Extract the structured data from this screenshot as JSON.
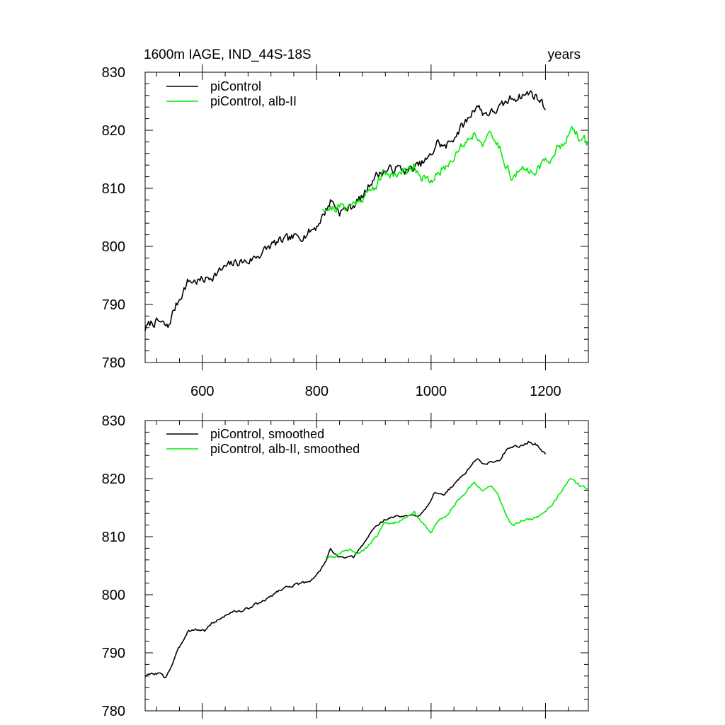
{
  "chart_data": [
    {
      "type": "line",
      "title_left": "1600m IAGE, IND_44S-18S",
      "title_right": "years",
      "xlim": [
        500,
        1275
      ],
      "ylim": [
        780,
        830
      ],
      "x_ticks": [
        600,
        800,
        1000,
        1200
      ],
      "x_tick_labels": [
        "600",
        "800",
        "1000",
        "1200"
      ],
      "y_ticks": [
        780,
        790,
        800,
        810,
        820,
        830
      ],
      "y_tick_labels": [
        "780",
        "790",
        "800",
        "810",
        "820",
        "830"
      ],
      "legend": [
        {
          "label": "piControl",
          "color": "#000000"
        },
        {
          "label": "piControl, alb-II",
          "color": "#00ee00"
        }
      ],
      "series": [
        {
          "name": "piControl",
          "color": "#000000",
          "noise": 1.2,
          "seed": 7,
          "points": [
            [
              500,
              785.8
            ],
            [
              510,
              786.8
            ],
            [
              525,
              787.0
            ],
            [
              540,
              786.0
            ],
            [
              550,
              789.0
            ],
            [
              560,
              791.0
            ],
            [
              575,
              794.0
            ],
            [
              590,
              794.0
            ],
            [
              605,
              794.3
            ],
            [
              620,
              795.0
            ],
            [
              640,
              796.4
            ],
            [
              660,
              797.3
            ],
            [
              680,
              797.4
            ],
            [
              700,
              798.6
            ],
            [
              720,
              800.2
            ],
            [
              740,
              801.0
            ],
            [
              760,
              801.5
            ],
            [
              780,
              802.0
            ],
            [
              800,
              803.5
            ],
            [
              815,
              806.0
            ],
            [
              825,
              808.0
            ],
            [
              840,
              806.0
            ],
            [
              860,
              806.8
            ],
            [
              880,
              808.5
            ],
            [
              900,
              812.0
            ],
            [
              920,
              813.0
            ],
            [
              940,
              813.5
            ],
            [
              960,
              813.0
            ],
            [
              980,
              814.0
            ],
            [
              1000,
              815.5
            ],
            [
              1010,
              818.0
            ],
            [
              1025,
              817.0
            ],
            [
              1045,
              819.5
            ],
            [
              1065,
              822.0
            ],
            [
              1080,
              824.5
            ],
            [
              1090,
              823.0
            ],
            [
              1105,
              823.0
            ],
            [
              1120,
              823.8
            ],
            [
              1140,
              825.5
            ],
            [
              1160,
              826.0
            ],
            [
              1175,
              826.5
            ],
            [
              1190,
              825.2
            ],
            [
              1200,
              824.0
            ]
          ]
        },
        {
          "name": "piControl, alb-II",
          "color": "#00ee00",
          "noise": 1.3,
          "seed": 21,
          "points": [
            [
              810,
              806.8
            ],
            [
              825,
              806.5
            ],
            [
              840,
              806.8
            ],
            [
              860,
              807.0
            ],
            [
              880,
              808.5
            ],
            [
              900,
              810.0
            ],
            [
              915,
              812.5
            ],
            [
              935,
              812.5
            ],
            [
              955,
              813.0
            ],
            [
              970,
              814.0
            ],
            [
              985,
              812.0
            ],
            [
              1000,
              810.8
            ],
            [
              1015,
              813.0
            ],
            [
              1030,
              814.0
            ],
            [
              1045,
              816.5
            ],
            [
              1060,
              818.0
            ],
            [
              1075,
              819.5
            ],
            [
              1090,
              818.0
            ],
            [
              1105,
              819.0
            ],
            [
              1120,
              817.0
            ],
            [
              1130,
              814.5
            ],
            [
              1140,
              812.0
            ],
            [
              1160,
              813.0
            ],
            [
              1180,
              813.2
            ],
            [
              1200,
              814.5
            ],
            [
              1215,
              816.0
            ],
            [
              1230,
              818.0
            ],
            [
              1245,
              820.0
            ],
            [
              1260,
              818.5
            ],
            [
              1275,
              818.0
            ]
          ]
        }
      ]
    },
    {
      "type": "line",
      "xlim": [
        500,
        1275
      ],
      "ylim": [
        780,
        830
      ],
      "x_ticks": [
        600,
        800,
        1000,
        1200
      ],
      "y_ticks": [
        780,
        790,
        800,
        810,
        820,
        830
      ],
      "y_tick_labels": [
        "780",
        "790",
        "800",
        "810",
        "820",
        "830"
      ],
      "legend": [
        {
          "label": "piControl, smoothed",
          "color": "#000000"
        },
        {
          "label": "piControl, alb-II, smoothed",
          "color": "#00ee00"
        }
      ],
      "series": [
        {
          "name": "piControl, smoothed",
          "color": "#000000",
          "noise": 0.35,
          "seed": 3,
          "points": [
            [
              500,
              786.0
            ],
            [
              510,
              786.3
            ],
            [
              525,
              786.5
            ],
            [
              535,
              785.7
            ],
            [
              545,
              787.5
            ],
            [
              560,
              791.0
            ],
            [
              575,
              793.8
            ],
            [
              590,
              794.0
            ],
            [
              605,
              793.8
            ],
            [
              615,
              795.0
            ],
            [
              630,
              795.8
            ],
            [
              650,
              797.0
            ],
            [
              670,
              797.2
            ],
            [
              690,
              798.2
            ],
            [
              710,
              799.0
            ],
            [
              730,
              800.5
            ],
            [
              750,
              801.5
            ],
            [
              770,
              801.8
            ],
            [
              790,
              802.5
            ],
            [
              805,
              804.0
            ],
            [
              815,
              805.5
            ],
            [
              823,
              808.0
            ],
            [
              830,
              807.0
            ],
            [
              845,
              806.3
            ],
            [
              865,
              806.5
            ],
            [
              880,
              808.5
            ],
            [
              900,
              811.5
            ],
            [
              920,
              813.0
            ],
            [
              940,
              813.5
            ],
            [
              960,
              813.5
            ],
            [
              980,
              813.8
            ],
            [
              995,
              815.5
            ],
            [
              1005,
              817.5
            ],
            [
              1020,
              817.0
            ],
            [
              1040,
              819.0
            ],
            [
              1060,
              821.0
            ],
            [
              1080,
              823.5
            ],
            [
              1090,
              822.5
            ],
            [
              1105,
              822.8
            ],
            [
              1120,
              823.2
            ],
            [
              1135,
              825.5
            ],
            [
              1155,
              825.5
            ],
            [
              1170,
              826.3
            ],
            [
              1185,
              825.8
            ],
            [
              1200,
              824.2
            ]
          ]
        },
        {
          "name": "piControl, alb-II, smoothed",
          "color": "#00ee00",
          "noise": 0.35,
          "seed": 11,
          "points": [
            [
              815,
              806.7
            ],
            [
              830,
              806.5
            ],
            [
              845,
              807.5
            ],
            [
              860,
              807.8
            ],
            [
              875,
              807.0
            ],
            [
              890,
              808.5
            ],
            [
              905,
              810.0
            ],
            [
              918,
              812.5
            ],
            [
              935,
              812.3
            ],
            [
              955,
              813.3
            ],
            [
              970,
              814.3
            ],
            [
              985,
              812.3
            ],
            [
              1000,
              810.7
            ],
            [
              1015,
              813.0
            ],
            [
              1030,
              813.8
            ],
            [
              1045,
              816.0
            ],
            [
              1060,
              817.8
            ],
            [
              1075,
              819.2
            ],
            [
              1090,
              818.0
            ],
            [
              1105,
              818.8
            ],
            [
              1118,
              817.0
            ],
            [
              1130,
              814.0
            ],
            [
              1142,
              811.8
            ],
            [
              1160,
              812.8
            ],
            [
              1180,
              813.2
            ],
            [
              1200,
              814.5
            ],
            [
              1215,
              815.8
            ],
            [
              1230,
              818.3
            ],
            [
              1245,
              820.0
            ],
            [
              1260,
              818.8
            ],
            [
              1275,
              818.2
            ]
          ]
        }
      ]
    }
  ]
}
